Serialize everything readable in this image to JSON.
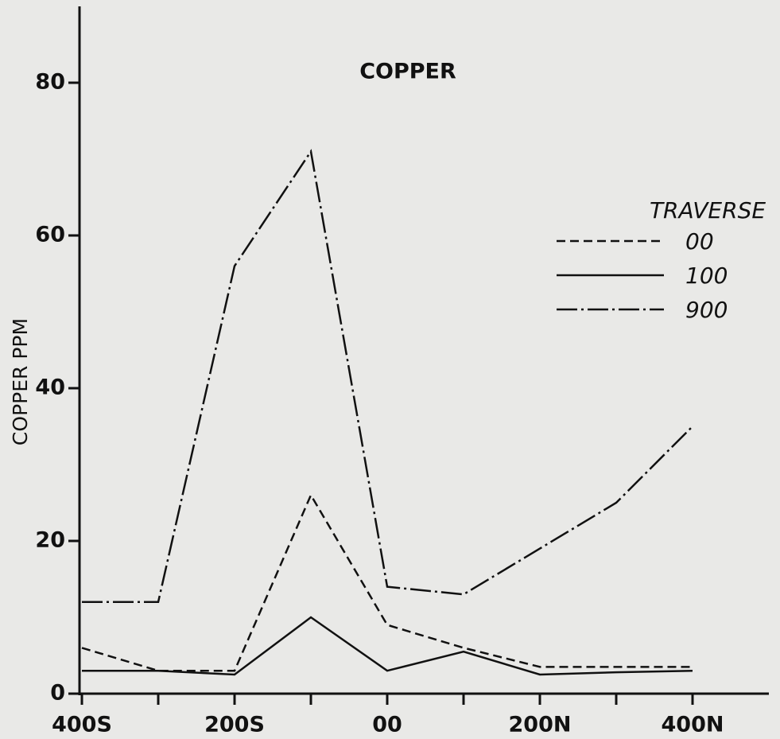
{
  "chart_data": {
    "type": "line",
    "title": "COPPER",
    "y_label": "COPPER PPM",
    "x": [
      -400,
      -300,
      -200,
      -100,
      0,
      100,
      200,
      300,
      400
    ],
    "xlim": [
      -400,
      500
    ],
    "xticks": [
      {
        "value": -400,
        "label": "400S"
      },
      {
        "value": -200,
        "label": "200S"
      },
      {
        "value": 0,
        "label": "00"
      },
      {
        "value": 200,
        "label": "200N"
      },
      {
        "value": 400,
        "label": "400N"
      }
    ],
    "xminorticks": [
      -300,
      -100,
      100,
      300
    ],
    "ylim": [
      0,
      90
    ],
    "yticks": [
      0,
      20,
      40,
      60,
      80
    ],
    "legend_title": "TRAVERSE",
    "legend": "upper right",
    "series": [
      {
        "name": "00",
        "color": "#111111",
        "style": "dashed",
        "values": [
          6,
          3,
          3,
          26,
          9,
          6,
          3.5,
          3.5,
          3.5
        ]
      },
      {
        "name": "100",
        "color": "#111111",
        "style": "solid",
        "values": [
          3,
          3,
          2.5,
          10,
          3,
          5.5,
          2.5,
          2.8,
          3
        ]
      },
      {
        "name": "900",
        "color": "#111111",
        "style": "dashdot",
        "values": [
          12,
          12,
          56,
          71,
          14,
          13,
          19,
          25,
          35
        ]
      }
    ]
  }
}
